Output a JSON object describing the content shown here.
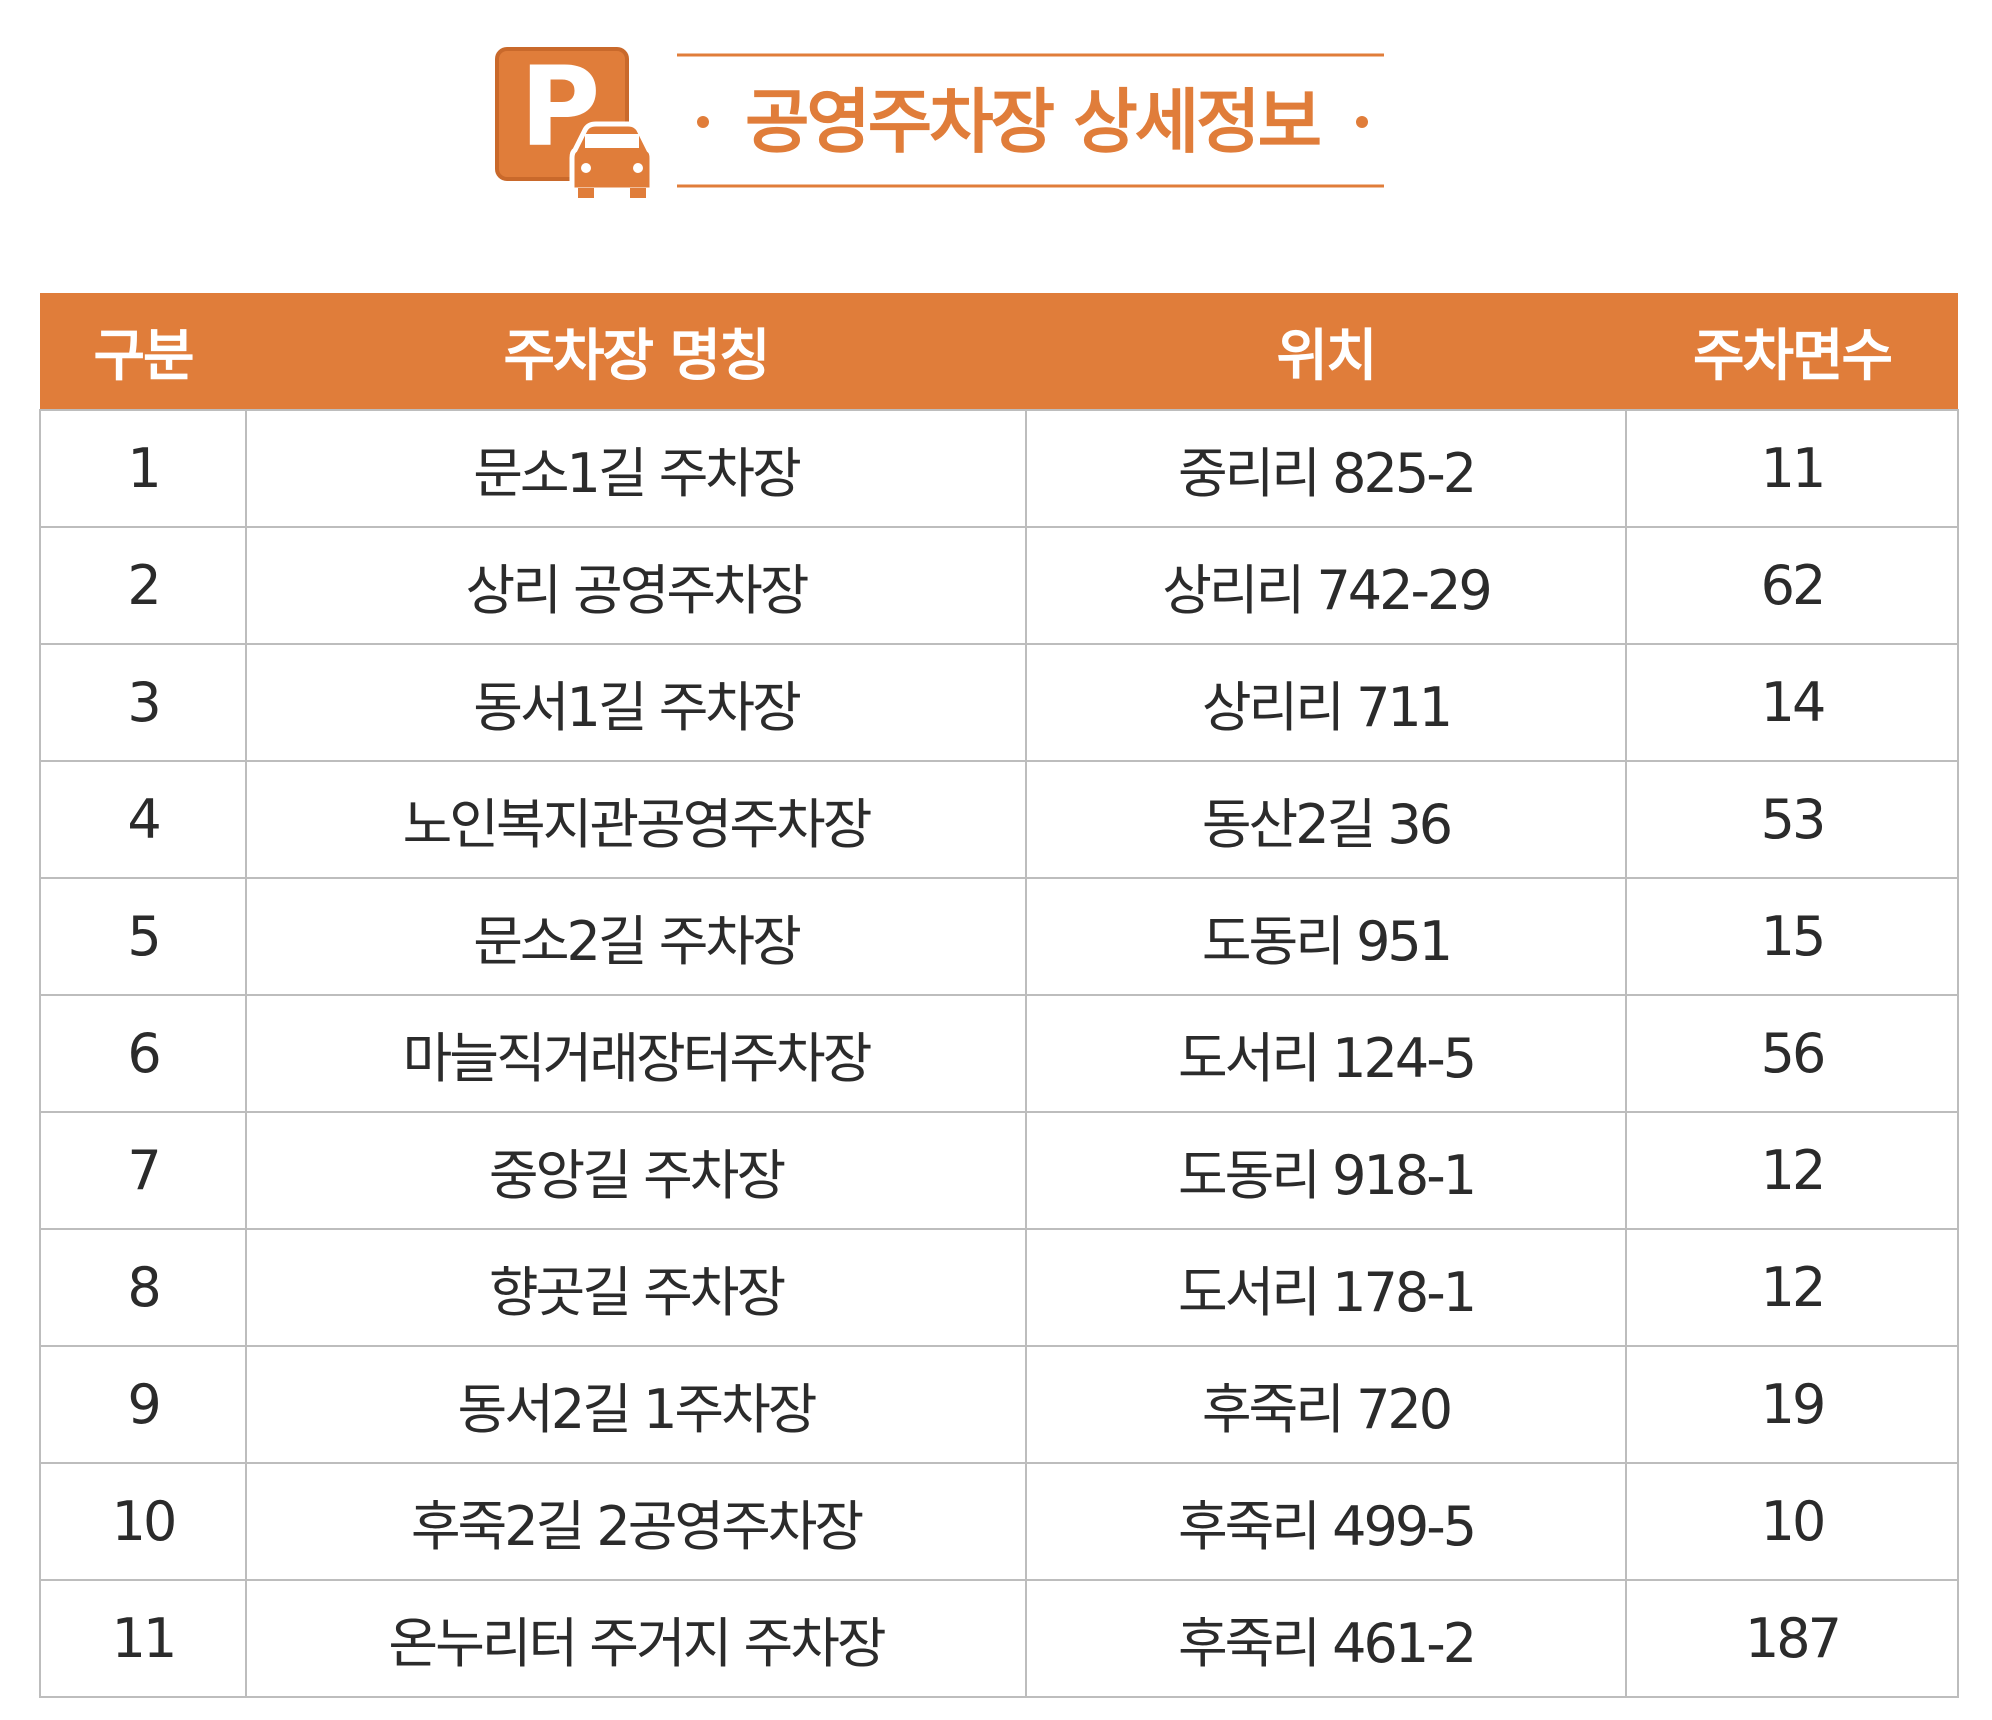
{
  "header": {
    "title": "공영주차장 상세정보",
    "icon_letter": "P"
  },
  "table": {
    "columns": [
      "구분",
      "주차장 명칭",
      "위치",
      "주차면수"
    ],
    "rows": [
      [
        1,
        "문소1길 주차장",
        "중리리 825-2",
        11
      ],
      [
        2,
        "상리 공영주차장",
        "상리리 742-29",
        62
      ],
      [
        3,
        "동서1길 주차장",
        "상리리 711",
        14
      ],
      [
        4,
        "노인복지관공영주차장",
        "동산2길 36",
        53
      ],
      [
        5,
        "문소2길 주차장",
        "도동리 951",
        15
      ],
      [
        6,
        "마늘직거래장터주차장",
        "도서리 124-5",
        56
      ],
      [
        7,
        "중앙길 주차장",
        "도동리 918-1",
        12
      ],
      [
        8,
        "향곳길 주차장",
        "도서리 178-1",
        12
      ],
      [
        9,
        "동서2길 1주차장",
        "후죽리 720",
        19
      ],
      [
        10,
        "후죽2길 2공영주차장",
        "후죽리 499-5",
        10
      ],
      [
        11,
        "온누리터 주거지 주차장",
        "후죽리 461-2",
        187
      ]
    ]
  }
}
